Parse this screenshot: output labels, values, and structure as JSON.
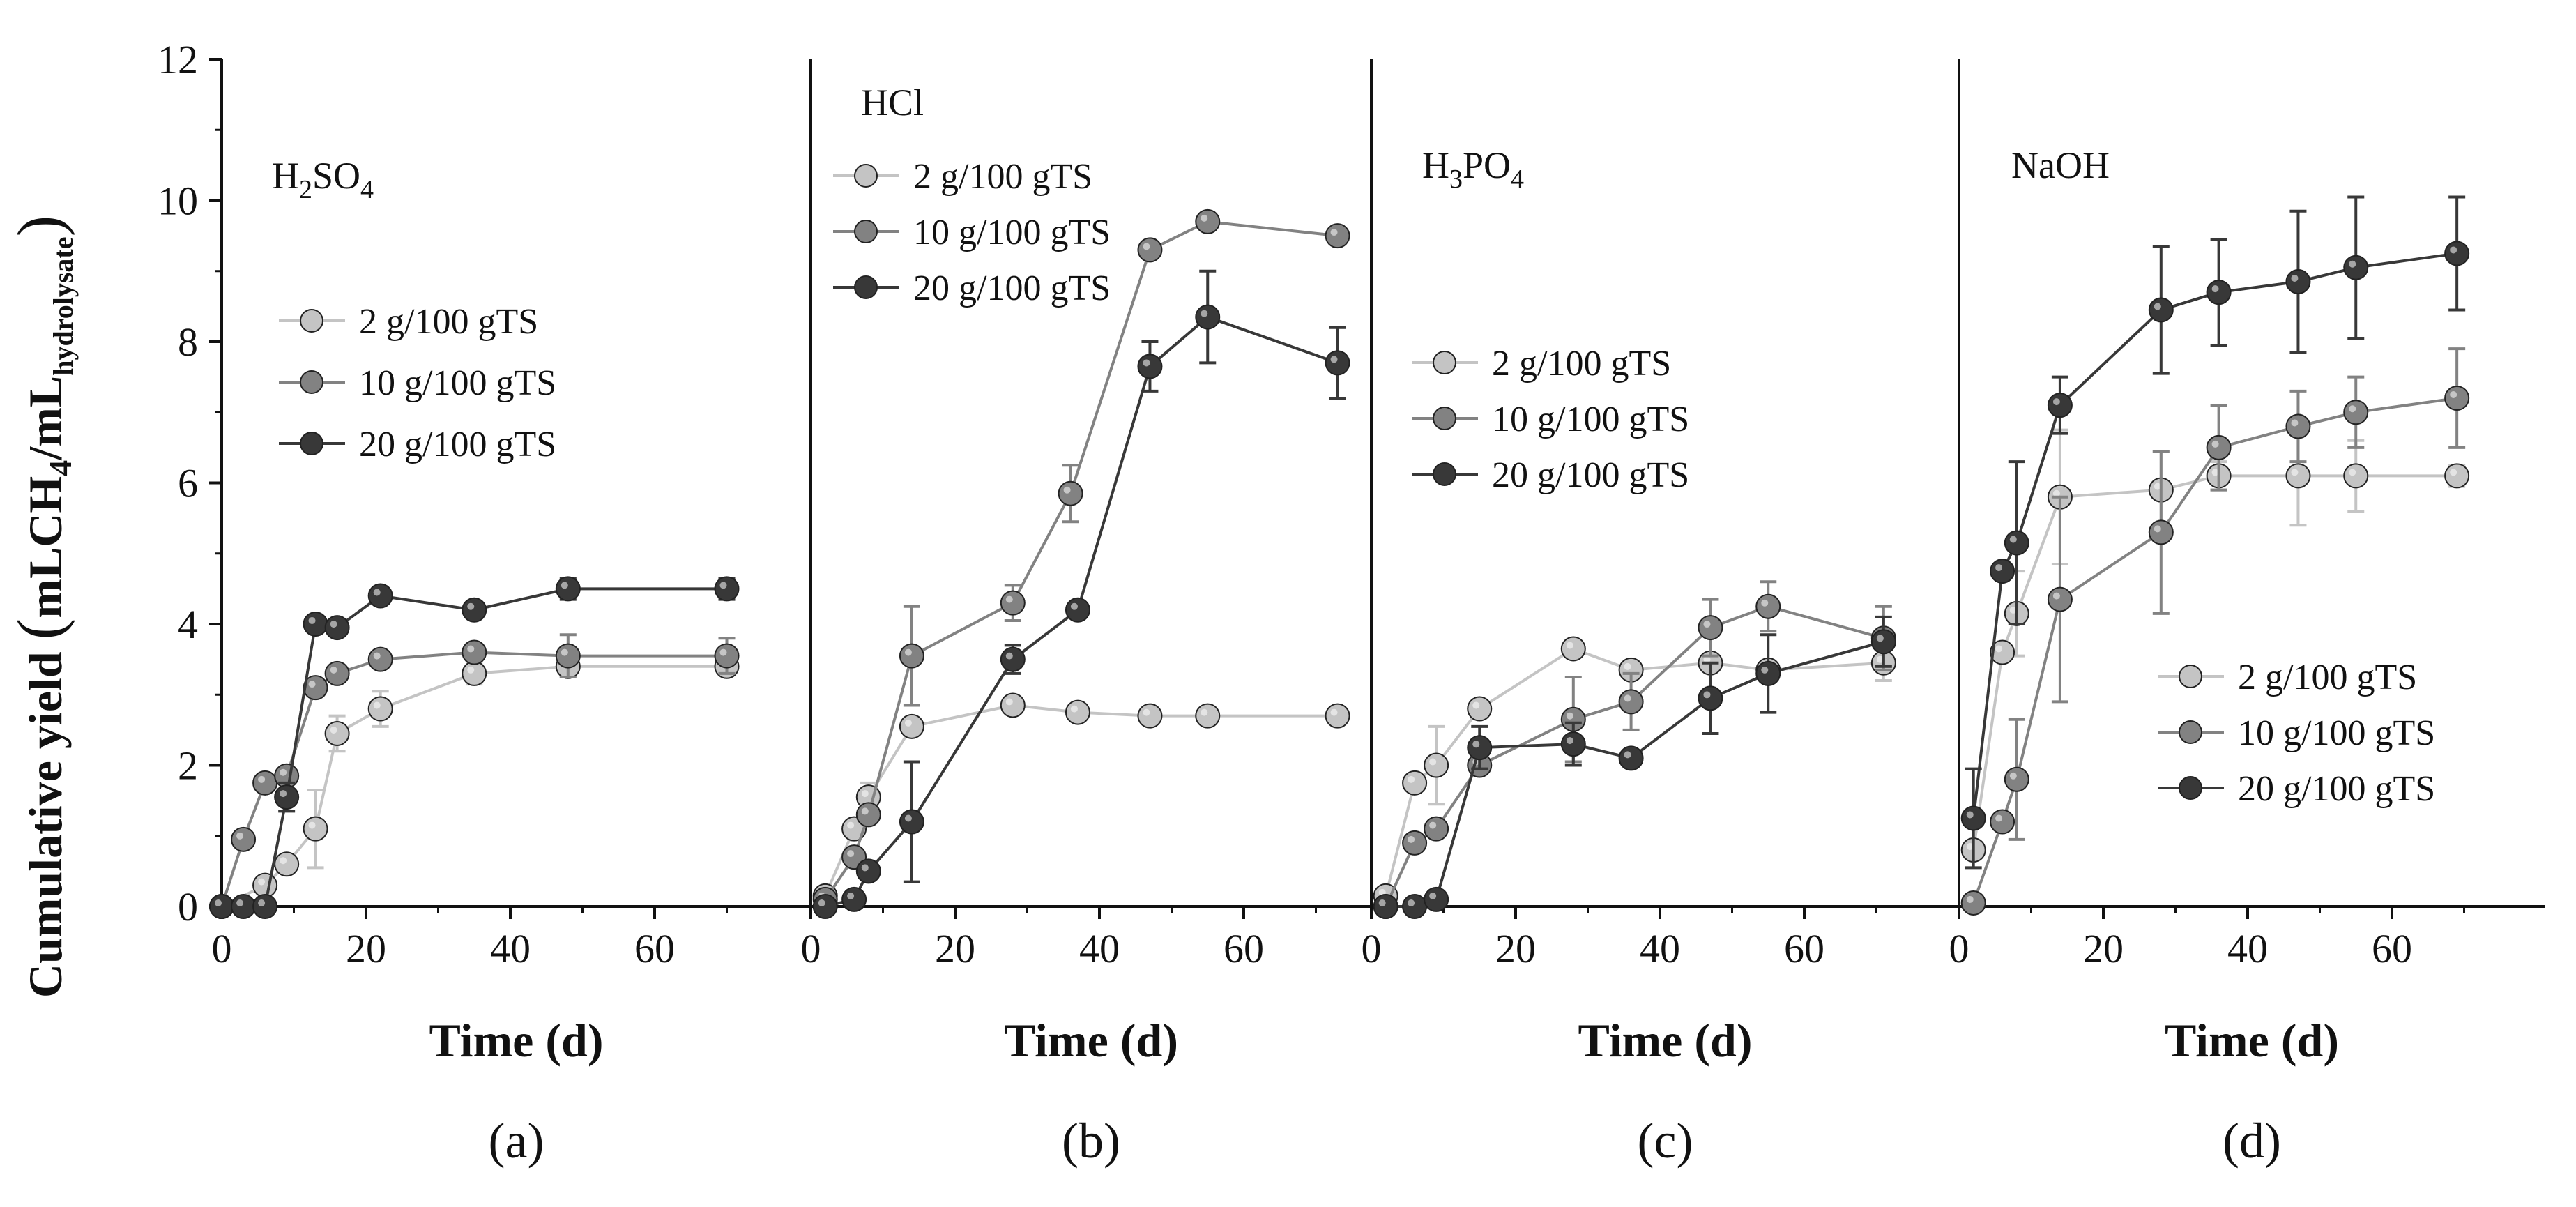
{
  "figure": {
    "y_axis_label": "Cumulative yield (mLCH4/mLhydrolysate)",
    "y_axis_label_parts": {
      "lead": "Cumulative yield ",
      "open_paren": "(",
      "m1": "mLCH",
      "sub1": "4",
      "slash": "/mL",
      "sub2": "hydrolysate",
      "close_paren": ")"
    }
  },
  "chart_data": [
    {
      "type": "line",
      "panel_label": "(a)",
      "title": "H2SO4",
      "title_parts": [
        {
          "t": "H"
        },
        {
          "t": "2",
          "sub": true
        },
        {
          "t": "SO"
        },
        {
          "t": "4",
          "sub": true
        }
      ],
      "xlabel": "Time (d)",
      "xlim": [
        0,
        75
      ],
      "ylim": [
        0,
        12
      ],
      "x_ticks": [
        "0",
        "20",
        "40",
        "60"
      ],
      "y_ticks": [
        "0",
        "2",
        "4",
        "6",
        "8",
        "10",
        "12"
      ],
      "legend_position": "center",
      "series": [
        {
          "name": "2 g/100 gTS",
          "color": "#c4c4c4",
          "x": [
            0,
            6,
            9,
            13,
            16,
            22,
            35,
            48,
            70
          ],
          "y": [
            0,
            0.3,
            0.6,
            1.1,
            2.45,
            2.8,
            3.3,
            3.4,
            3.4
          ],
          "err": [
            0,
            0,
            0,
            0.55,
            0.25,
            0.25,
            0.15,
            0.15,
            0.1
          ]
        },
        {
          "name": "10 g/100 gTS",
          "color": "#828282",
          "x": [
            0,
            3,
            6,
            9,
            13,
            16,
            22,
            35,
            48,
            70
          ],
          "y": [
            0,
            0.95,
            1.75,
            1.85,
            3.1,
            3.3,
            3.5,
            3.6,
            3.55,
            3.55
          ],
          "err": [
            0,
            0,
            0,
            0,
            0,
            0,
            0,
            0.1,
            0.3,
            0.25
          ]
        },
        {
          "name": "20 g/100 gTS",
          "color": "#383838",
          "x": [
            0,
            3,
            6,
            9,
            13,
            16,
            22,
            35,
            48,
            70
          ],
          "y": [
            0,
            0,
            0,
            1.55,
            4.0,
            3.95,
            4.4,
            4.2,
            4.5,
            4.5
          ],
          "err": [
            0,
            0,
            0,
            0.2,
            0,
            0,
            0,
            0,
            0.15,
            0.15
          ]
        }
      ]
    },
    {
      "type": "line",
      "panel_label": "(b)",
      "title": "HCl",
      "title_parts": [
        {
          "t": "HCl"
        }
      ],
      "xlabel": "Time (d)",
      "xlim": [
        0,
        75
      ],
      "ylim": [
        0,
        12
      ],
      "x_ticks": [
        "0",
        "20",
        "40",
        "60"
      ],
      "legend_position": "top-left",
      "series": [
        {
          "name": "2 g/100 gTS",
          "color": "#c4c4c4",
          "x": [
            2,
            6,
            8,
            14,
            28,
            37,
            47,
            55,
            73
          ],
          "y": [
            0.15,
            1.1,
            1.55,
            2.55,
            2.85,
            2.75,
            2.7,
            2.7,
            2.7
          ],
          "err": [
            0,
            0,
            0.2,
            0.1,
            0,
            0,
            0,
            0,
            0
          ]
        },
        {
          "name": "10 g/100 gTS",
          "color": "#828282",
          "x": [
            2,
            6,
            8,
            14,
            28,
            36,
            47,
            55,
            73
          ],
          "y": [
            0.1,
            0.7,
            1.3,
            3.55,
            4.3,
            5.85,
            9.3,
            9.7,
            9.5
          ],
          "err": [
            0,
            0,
            0,
            0.7,
            0.25,
            0.4,
            0,
            0,
            0
          ]
        },
        {
          "name": "20 g/100 gTS",
          "color": "#383838",
          "x": [
            2,
            6,
            8,
            14,
            28,
            37,
            47,
            55,
            73
          ],
          "y": [
            0,
            0.1,
            0.5,
            1.2,
            3.5,
            4.2,
            7.65,
            8.35,
            7.7
          ],
          "err": [
            0,
            0,
            0,
            0.85,
            0.2,
            0,
            0.35,
            0.65,
            0.5
          ]
        }
      ]
    },
    {
      "type": "line",
      "panel_label": "(c)",
      "title": "H3PO4",
      "title_parts": [
        {
          "t": "H"
        },
        {
          "t": "3",
          "sub": true
        },
        {
          "t": "PO"
        },
        {
          "t": "4",
          "sub": true
        }
      ],
      "xlabel": "Time (d)",
      "xlim": [
        0,
        75
      ],
      "ylim": [
        0,
        12
      ],
      "x_ticks": [
        "0",
        "20",
        "40",
        "60"
      ],
      "legend_position": "center-left",
      "series": [
        {
          "name": "2 g/100 gTS",
          "color": "#c4c4c4",
          "x": [
            2,
            6,
            9,
            15,
            28,
            36,
            47,
            55,
            71
          ],
          "y": [
            0.15,
            1.75,
            2.0,
            2.8,
            3.65,
            3.35,
            3.45,
            3.35,
            3.45
          ],
          "err": [
            0,
            0,
            0.55,
            0,
            0,
            0,
            0,
            0,
            0.25
          ]
        },
        {
          "name": "10 g/100 gTS",
          "color": "#828282",
          "x": [
            2,
            6,
            9,
            15,
            28,
            36,
            47,
            55,
            71
          ],
          "y": [
            0,
            0.9,
            1.1,
            2.0,
            2.65,
            2.9,
            3.95,
            4.25,
            3.8
          ],
          "err": [
            0,
            0,
            0,
            0,
            0.6,
            0.4,
            0.4,
            0.35,
            0.45
          ]
        },
        {
          "name": "20 g/100 gTS",
          "color": "#383838",
          "x": [
            2,
            6,
            9,
            15,
            28,
            36,
            47,
            55,
            71
          ],
          "y": [
            0,
            0,
            0.1,
            2.25,
            2.3,
            2.1,
            2.95,
            3.3,
            3.75
          ],
          "err": [
            0,
            0,
            0,
            0.3,
            0.3,
            0,
            0.5,
            0.55,
            0.35
          ]
        }
      ]
    },
    {
      "type": "line",
      "panel_label": "(d)",
      "title": "NaOH",
      "title_parts": [
        {
          "t": "NaOH"
        }
      ],
      "xlabel": "Time (d)",
      "xlim": [
        0,
        75
      ],
      "ylim": [
        0,
        12
      ],
      "x_ticks": [
        "0",
        "20",
        "40",
        "60"
      ],
      "legend_position": "bottom-right",
      "series": [
        {
          "name": "2 g/100 gTS",
          "color": "#c4c4c4",
          "x": [
            2,
            6,
            8,
            14,
            28,
            36,
            47,
            55,
            69
          ],
          "y": [
            0.8,
            3.6,
            4.15,
            5.8,
            5.9,
            6.1,
            6.1,
            6.1,
            6.1
          ],
          "err": [
            0,
            0,
            0.6,
            0.95,
            0.55,
            0.2,
            0.7,
            0.5,
            0.15
          ]
        },
        {
          "name": "10 g/100 gTS",
          "color": "#828282",
          "x": [
            2,
            6,
            8,
            14,
            28,
            36,
            47,
            55,
            69
          ],
          "y": [
            0.05,
            1.2,
            1.8,
            4.35,
            5.3,
            6.5,
            6.8,
            7.0,
            7.2
          ],
          "err": [
            0,
            0,
            0.85,
            1.45,
            1.15,
            0.6,
            0.5,
            0.5,
            0.7
          ]
        },
        {
          "name": "20 g/100 gTS",
          "color": "#383838",
          "x": [
            2,
            6,
            8,
            14,
            28,
            36,
            47,
            55,
            69
          ],
          "y": [
            1.25,
            4.75,
            5.15,
            7.1,
            8.45,
            8.7,
            8.85,
            9.05,
            9.25
          ],
          "err": [
            0.7,
            0,
            1.15,
            0.4,
            0.9,
            0.75,
            1.0,
            1.0,
            0.8
          ]
        }
      ]
    }
  ]
}
